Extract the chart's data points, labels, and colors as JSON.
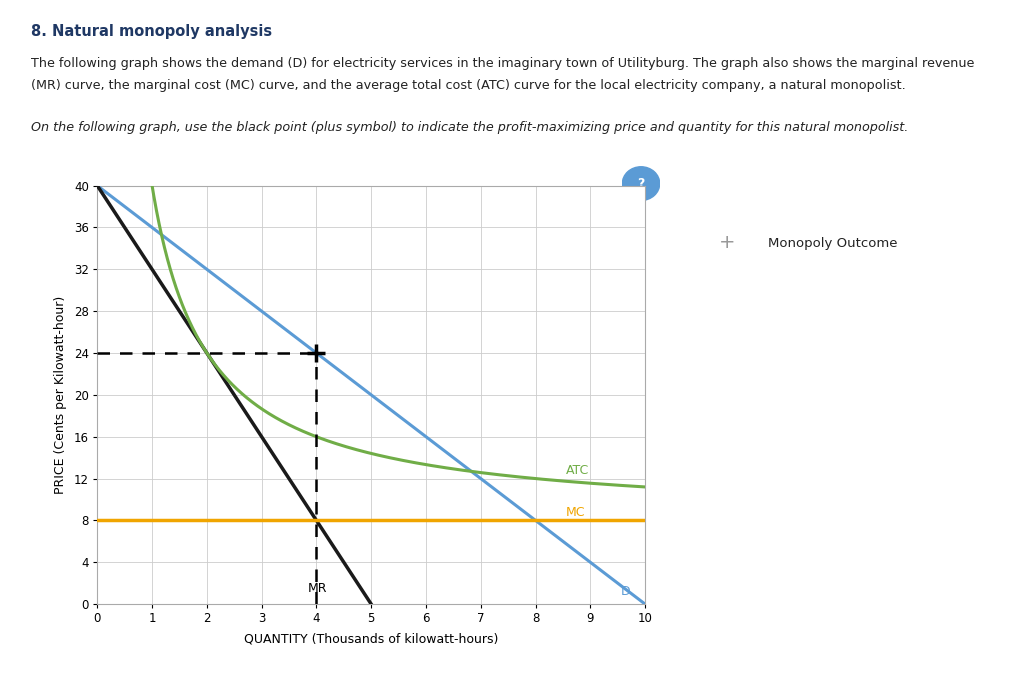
{
  "title": "8. Natural monopoly analysis",
  "paragraph1_line1": "The following graph shows the demand (D) for electricity services in the imaginary town of Utilityburg. The graph also shows the marginal revenue",
  "paragraph1_line2": "(MR) curve, the marginal cost (MC) curve, and the average total cost (ATC) curve for the local electricity company, a natural monopolist.",
  "italic_text": "On the following graph, use the black point (plus symbol) to indicate the profit-maximizing price and quantity for this natural monopolist.",
  "xlabel": "QUANTITY (Thousands of kilowatt-hours)",
  "ylabel": "PRICE (Cents per Kilowatt-hour)",
  "xlim": [
    0,
    10
  ],
  "ylim": [
    0,
    40
  ],
  "xticks": [
    0,
    1,
    2,
    3,
    4,
    5,
    6,
    7,
    8,
    9,
    10
  ],
  "yticks": [
    0,
    4,
    8,
    12,
    16,
    20,
    24,
    28,
    32,
    36,
    40
  ],
  "demand_color": "#5b9bd5",
  "mr_color": "#1a1a1a",
  "mc_color": "#f0a500",
  "atc_color": "#70ad47",
  "monopoly_point": [
    4,
    24
  ],
  "mc_value": 8,
  "legend_text": "Monopoly Outcome",
  "background_color": "#ffffff",
  "plot_bg_color": "#ffffff",
  "grid_color": "#cccccc",
  "title_color": "#1f3864",
  "text_color": "#222222"
}
